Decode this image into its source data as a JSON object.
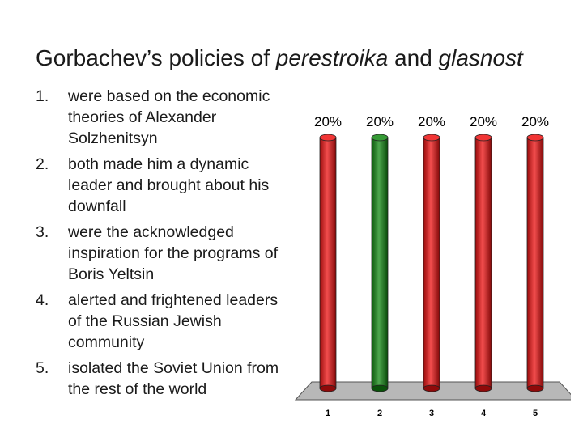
{
  "slide": {
    "title_prefix": "Gorbachev’s policies of ",
    "title_term1": "perestroika",
    "title_mid": " and ",
    "title_term2": "glasnost"
  },
  "options": [
    {
      "number": "1",
      "text": "were based on the economic theories of Alexander Solzhenitsyn"
    },
    {
      "number": "2",
      "text": "both made him a dynamic leader and brought about his downfall"
    },
    {
      "number": "3",
      "text": "were the acknowledged inspiration for the programs of Boris Yeltsin"
    },
    {
      "number": "4",
      "text": "alerted and frightened leaders of the Russian Jewish community"
    },
    {
      "number": "5",
      "text": "isolated the Soviet Union from the rest of the world"
    }
  ],
  "chart_data": {
    "type": "bar",
    "categories": [
      "1",
      "2",
      "3",
      "4",
      "5"
    ],
    "values": [
      20,
      20,
      20,
      20,
      20
    ],
    "value_labels": [
      "20%",
      "20%",
      "20%",
      "20%",
      "20%"
    ],
    "ylim": [
      0,
      20
    ],
    "grid": false,
    "legend": "none",
    "colors": {
      "bar_default": "#ee1111",
      "bar_highlight": "#118811",
      "highlight_index": 1,
      "floor": "#b8b8b8"
    }
  }
}
